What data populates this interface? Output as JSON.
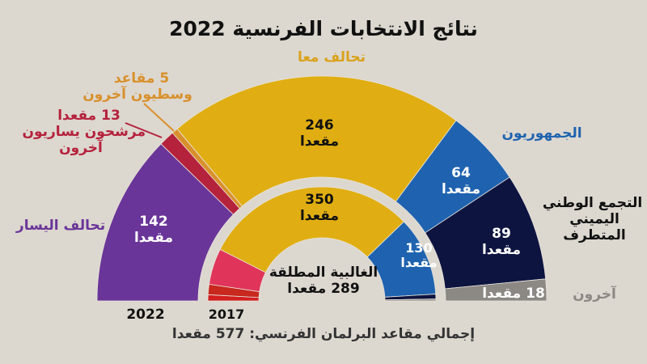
{
  "title": "نتائج الانتخابات الفرنسية 2022",
  "footer": "إجمالي مقاعد البرلمان الفرنسي: 577 مقعدا",
  "unit": "مقعدا",
  "chart_data": [
    {
      "type": "pie",
      "variant": "half-donut",
      "label": "2022",
      "categories": [
        "تحالف اليسار",
        "مرشحون يساريون آخرون",
        "وسطيون آخرون",
        "تحالف معا",
        "الجمهوريون",
        "التجمع الوطني اليميني المتطرف",
        "آخرون"
      ],
      "values": [
        142,
        13,
        5,
        246,
        64,
        89,
        18
      ],
      "colors": [
        "#6a3598",
        "#b5223c",
        "#d9902c",
        "#e0ae12",
        "#1f63b0",
        "#0d1440",
        "#8c8884"
      ],
      "data_labels": [
        "142\nمقعدا",
        "13 مقعدا",
        "5 مقاعد",
        "246\nمقعدا",
        "64\nمقعدا",
        "89\nمقعدا",
        "18 مقعدا"
      ]
    },
    {
      "type": "pie",
      "variant": "half-donut",
      "label": "2017",
      "values": [
        10,
        17,
        59,
        350,
        130,
        8,
        3
      ],
      "colors": [
        "#d21f1f",
        "#c8281e",
        "#e0345a",
        "#e0ae12",
        "#1f63b0",
        "#0d1440",
        "#8c8884"
      ],
      "data_labels": [
        "",
        "",
        "",
        "350\nمقعدا",
        "130\nمقعدا",
        "",
        ""
      ]
    }
  ],
  "labels": {
    "ensemble": "تحالف معا",
    "centrists_count": "5 مقاعد",
    "centrists_name": "وسطيون آخرون",
    "left_others_count": "13 مقعدا",
    "left_others_name1": "مرشحون يساريون",
    "left_others_name2": "آخرون",
    "nupes": "تحالف اليسار",
    "republicans": "الجمهوريون",
    "rn1": "التجمع الوطني",
    "rn2": "اليميني",
    "rn3": "المتطرف",
    "others": "آخرون",
    "others_count": "18 مقعدا",
    "v142": "142",
    "v246": "246",
    "v64": "64",
    "v89": "89",
    "v350": "350",
    "v130": "130",
    "majority1": "الغالبية المطلقة",
    "majority2": "289 مقعدا",
    "year2022": "2022",
    "year2017": "2017"
  }
}
